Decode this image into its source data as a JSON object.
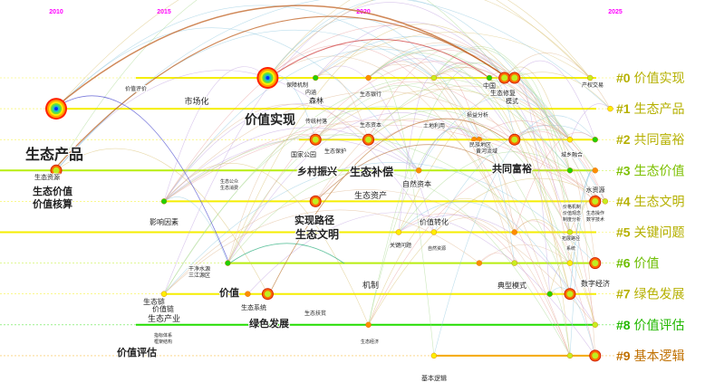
{
  "chart_data": {
    "type": "timeline",
    "x_axis": {
      "ticks": [
        "2010",
        "2015",
        "2020",
        "2025"
      ],
      "range": [
        2010,
        2025
      ]
    },
    "clusters": [
      {
        "id": "#0",
        "label": "价值实现",
        "color": "#b5b000"
      },
      {
        "id": "#1",
        "label": "生态产品",
        "color": "#b5b000"
      },
      {
        "id": "#2",
        "label": "共同富裕",
        "color": "#b5b000"
      },
      {
        "id": "#3",
        "label": "生态价值",
        "color": "#7cc000"
      },
      {
        "id": "#4",
        "label": "生态文明",
        "color": "#b5b000"
      },
      {
        "id": "#5",
        "label": "关键问题",
        "color": "#b5b000"
      },
      {
        "id": "#6",
        "label": "价值",
        "color": "#6cbd00"
      },
      {
        "id": "#7",
        "label": "绿色发展",
        "color": "#b5b000"
      },
      {
        "id": "#8",
        "label": "价值评估",
        "color": "#22b800"
      },
      {
        "id": "#9",
        "label": "基本逻辑",
        "color": "#c07000"
      }
    ],
    "nodes": [
      {
        "cluster": 0,
        "year": 2017.6,
        "size": 3
      },
      {
        "cluster": 0,
        "year": 2018.8,
        "size": 1
      },
      {
        "cluster": 0,
        "year": 2020.1,
        "size": 1
      },
      {
        "cluster": 0,
        "year": 2021.4,
        "size": 1
      },
      {
        "cluster": 0,
        "year": 2022.5,
        "size": 1
      },
      {
        "cluster": 0,
        "year": 2022.8,
        "size": 2
      },
      {
        "cluster": 0,
        "year": 2023.0,
        "size": 2
      },
      {
        "cluster": 0,
        "year": 2024.5,
        "size": 1
      },
      {
        "cluster": 1,
        "year": 2010,
        "size": 3
      },
      {
        "cluster": 1,
        "year": 2024.9,
        "size": 1
      },
      {
        "cluster": 2,
        "year": 2018.8,
        "size": 2
      },
      {
        "cluster": 2,
        "year": 2020.1,
        "size": 2
      },
      {
        "cluster": 2,
        "year": 2022.2,
        "size": 1
      },
      {
        "cluster": 2,
        "year": 2022.3,
        "size": 1
      },
      {
        "cluster": 2,
        "year": 2023.0,
        "size": 2
      },
      {
        "cluster": 2,
        "year": 2024.1,
        "size": 1
      },
      {
        "cluster": 2,
        "year": 2024.6,
        "size": 1
      },
      {
        "cluster": 3,
        "year": 2010,
        "size": 2
      },
      {
        "cluster": 3,
        "year": 2021.1,
        "size": 1
      },
      {
        "cluster": 3,
        "year": 2024.1,
        "size": 1
      },
      {
        "cluster": 3,
        "year": 2024.6,
        "size": 1
      },
      {
        "cluster": 4,
        "year": 2015,
        "size": 1
      },
      {
        "cluster": 4,
        "year": 2018.8,
        "size": 2
      },
      {
        "cluster": 4,
        "year": 2024.6,
        "size": 2
      },
      {
        "cluster": 4,
        "year": 2024.8,
        "size": 1
      },
      {
        "cluster": 5,
        "year": 2020.7,
        "size": 1
      },
      {
        "cluster": 5,
        "year": 2021.4,
        "size": 1
      },
      {
        "cluster": 5,
        "year": 2023.0,
        "size": 1
      },
      {
        "cluster": 5,
        "year": 2024.1,
        "size": 1
      },
      {
        "cluster": 6,
        "year": 2016.6,
        "size": 1
      },
      {
        "cluster": 6,
        "year": 2022.3,
        "size": 1
      },
      {
        "cluster": 6,
        "year": 2023.0,
        "size": 1
      },
      {
        "cluster": 6,
        "year": 2024.1,
        "size": 1
      },
      {
        "cluster": 6,
        "year": 2024.6,
        "size": 2
      },
      {
        "cluster": 7,
        "year": 2015,
        "size": 1
      },
      {
        "cluster": 7,
        "year": 2017.1,
        "size": 1
      },
      {
        "cluster": 7,
        "year": 2017.6,
        "size": 2
      },
      {
        "cluster": 7,
        "year": 2023.7,
        "size": 1
      },
      {
        "cluster": 7,
        "year": 2024.1,
        "size": 2
      },
      {
        "cluster": 8,
        "year": 2020.1,
        "size": 1
      },
      {
        "cluster": 8,
        "year": 2024.6,
        "size": 1
      },
      {
        "cluster": 9,
        "year": 2021.4,
        "size": 1
      },
      {
        "cluster": 9,
        "year": 2024.1,
        "size": 1
      },
      {
        "cluster": 9,
        "year": 2024.6,
        "size": 2
      }
    ],
    "keywords": [
      "价值评价",
      "市场化",
      "保障机制",
      "内涵",
      "森林",
      "生态银行",
      "中国",
      "生态修复",
      "模式",
      "产权交易",
      "价值实现",
      "传统村落",
      "生态资本",
      "土地利用",
      "损益分析",
      "生态产品",
      "国家公园",
      "生态保护",
      "民族地区",
      "黄河流域",
      "城乡融合",
      "乡村振兴",
      "生态补偿",
      "共同富裕",
      "生态资源",
      "生态价值",
      "价值核算",
      "生态公众",
      "生态消费",
      "自然资本",
      "生态资产",
      "水资源",
      "价格机制",
      "价值观念",
      "制度分析",
      "生态操作",
      "数字技术",
      "影响因素",
      "实现路径",
      "生态文明",
      "价值转化",
      "关键问题",
      "自然资源",
      "拓展路径",
      "系统",
      "干净水源",
      "三江源区",
      "机制",
      "典型模式",
      "数字经济",
      "价值",
      "生态链",
      "价值链",
      "生态产业",
      "生态系统",
      "生态扶贫",
      "绿色发展",
      "指标体系",
      "框架结构",
      "生态经济",
      "价值评估",
      "基本逻辑"
    ]
  }
}
